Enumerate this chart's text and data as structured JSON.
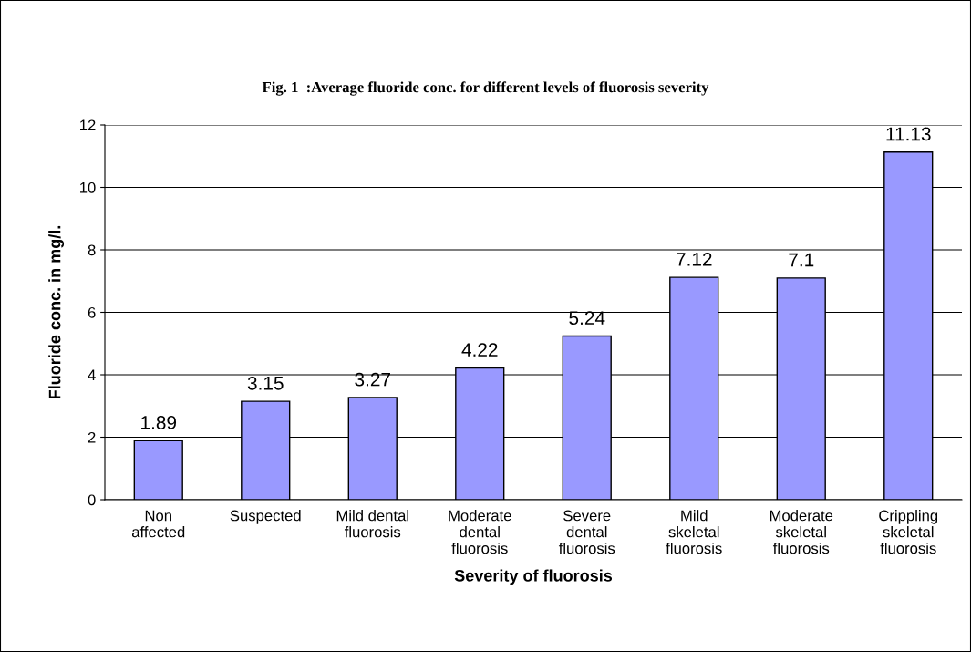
{
  "chart_data": {
    "type": "bar",
    "title": "Fig. 1  :Average fluoride conc. for different levels of fluorosis severity",
    "xlabel": "Severity of fluorosis",
    "ylabel": "Fluoride conc. in mg/l.",
    "categories": [
      "Non\naffected",
      "Suspected",
      "Mild dental\nfluorosis",
      "Moderate\ndental\nfluorosis",
      "Severe\ndental\nfluorosis",
      "Mild\nskeletal\nfluorosis",
      "Moderate\nskeletal\nfluorosis",
      "Crippling\nskeletal\nfluorosis"
    ],
    "values": [
      1.89,
      3.15,
      3.27,
      4.22,
      5.24,
      7.12,
      7.1,
      11.13
    ],
    "color": "#9999ff",
    "data_labels": true,
    "ylim": [
      0,
      12
    ],
    "yticks": [
      0,
      2,
      4,
      6,
      8,
      10,
      12
    ],
    "grid": "y",
    "legend": false
  }
}
